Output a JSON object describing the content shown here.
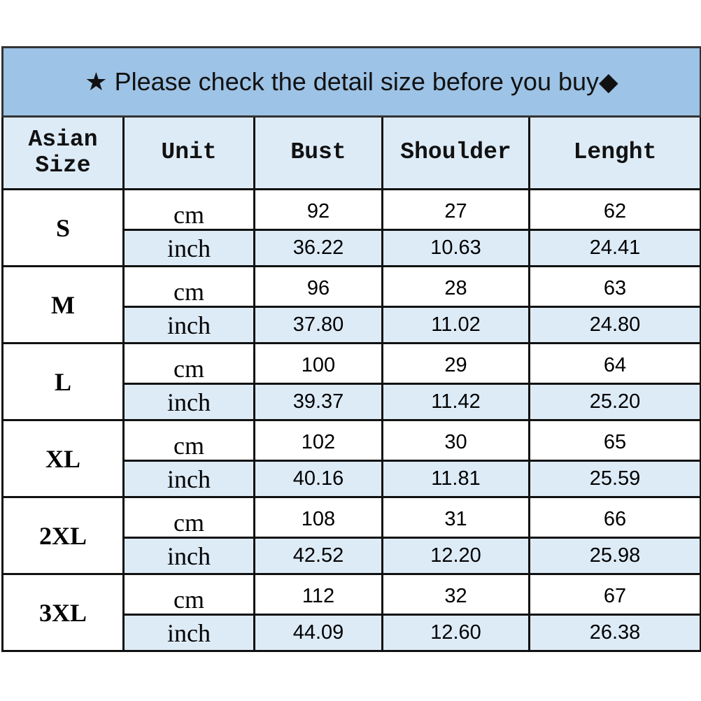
{
  "banner": {
    "star_icon": "★",
    "text": "Please check the detail size before you buy",
    "diamond_icon": "◆"
  },
  "headers": {
    "size_line1": "Asian",
    "size_line2": "Size",
    "unit": "Unit",
    "bust": "Bust",
    "shoulder": "Shoulder",
    "length": "Lenght"
  },
  "colors": {
    "banner_bg": "#9dc3e6",
    "light_bg": "#ddebf7",
    "border": "#111111"
  },
  "rows": [
    {
      "size": "S",
      "cm": {
        "unit": "cm",
        "bust": "92",
        "shoulder": "27",
        "length": "62"
      },
      "inch": {
        "unit": "inch",
        "bust": "36.22",
        "shoulder": "10.63",
        "length": "24.41"
      }
    },
    {
      "size": "M",
      "cm": {
        "unit": "cm",
        "bust": "96",
        "shoulder": "28",
        "length": "63"
      },
      "inch": {
        "unit": "inch",
        "bust": "37.80",
        "shoulder": "11.02",
        "length": "24.80"
      }
    },
    {
      "size": "L",
      "cm": {
        "unit": "cm",
        "bust": "100",
        "shoulder": "29",
        "length": "64"
      },
      "inch": {
        "unit": "inch",
        "bust": "39.37",
        "shoulder": "11.42",
        "length": "25.20"
      }
    },
    {
      "size": "XL",
      "cm": {
        "unit": "cm",
        "bust": "102",
        "shoulder": "30",
        "length": "65"
      },
      "inch": {
        "unit": "inch",
        "bust": "40.16",
        "shoulder": "11.81",
        "length": "25.59"
      }
    },
    {
      "size": "2XL",
      "cm": {
        "unit": "cm",
        "bust": "108",
        "shoulder": "31",
        "length": "66"
      },
      "inch": {
        "unit": "inch",
        "bust": "42.52",
        "shoulder": "12.20",
        "length": "25.98"
      }
    },
    {
      "size": "3XL",
      "cm": {
        "unit": "cm",
        "bust": "112",
        "shoulder": "32",
        "length": "67"
      },
      "inch": {
        "unit": "inch",
        "bust": "44.09",
        "shoulder": "12.60",
        "length": "26.38"
      }
    }
  ]
}
